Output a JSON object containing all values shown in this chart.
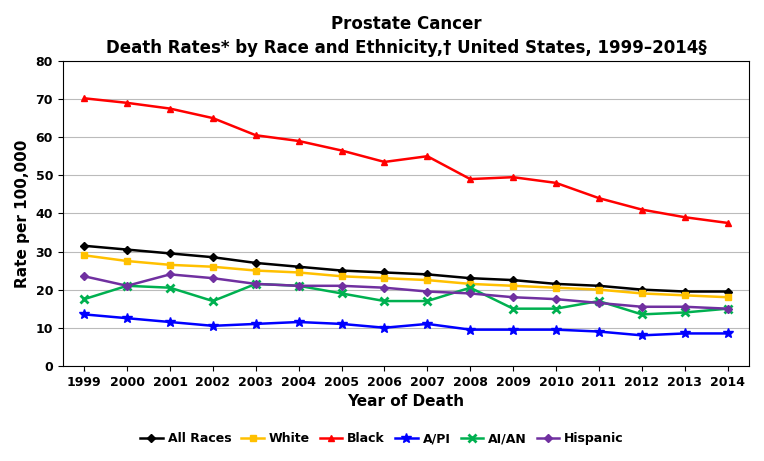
{
  "title_line1": "Prostate Cancer",
  "title_line2": "Death Rates* by Race and Ethnicity,† United States, 1999–2014§",
  "xlabel": "Year of Death",
  "ylabel": "Rate per 100,000",
  "years": [
    1999,
    2000,
    2001,
    2002,
    2003,
    2004,
    2005,
    2006,
    2007,
    2008,
    2009,
    2010,
    2011,
    2012,
    2013,
    2014
  ],
  "series": {
    "All Races": {
      "values": [
        31.5,
        30.5,
        29.5,
        28.5,
        27.0,
        26.0,
        25.0,
        24.5,
        24.0,
        23.0,
        22.5,
        21.5,
        21.0,
        20.0,
        19.5,
        19.5
      ],
      "color": "#000000",
      "marker": "D",
      "markersize": 4
    },
    "White": {
      "values": [
        29.0,
        27.5,
        26.5,
        26.0,
        25.0,
        24.5,
        23.5,
        23.0,
        22.5,
        21.5,
        21.0,
        20.5,
        20.0,
        19.0,
        18.5,
        18.0
      ],
      "color": "#FFC000",
      "marker": "s",
      "markersize": 4
    },
    "Black": {
      "values": [
        70.2,
        69.0,
        67.5,
        65.0,
        60.5,
        59.0,
        56.5,
        53.5,
        55.0,
        49.0,
        49.5,
        48.0,
        44.0,
        41.0,
        39.0,
        37.5
      ],
      "color": "#FF0000",
      "marker": "^",
      "markersize": 5
    },
    "A/PI": {
      "values": [
        13.5,
        12.5,
        11.5,
        10.5,
        11.0,
        11.5,
        11.0,
        10.0,
        11.0,
        9.5,
        9.5,
        9.5,
        9.0,
        8.0,
        8.5,
        8.5
      ],
      "color": "#0000FF",
      "marker": "*",
      "markersize": 7
    },
    "AI/AN": {
      "values": [
        17.5,
        21.0,
        20.5,
        17.0,
        21.5,
        21.0,
        19.0,
        17.0,
        17.0,
        20.5,
        15.0,
        15.0,
        17.0,
        13.5,
        14.0,
        15.0
      ],
      "color": "#00B050",
      "marker": "x",
      "markersize": 6,
      "markeredgewidth": 2
    },
    "Hispanic": {
      "values": [
        23.5,
        21.0,
        24.0,
        23.0,
        21.5,
        21.0,
        21.0,
        20.5,
        19.5,
        19.0,
        18.0,
        17.5,
        16.5,
        15.5,
        15.5,
        15.0
      ],
      "color": "#7030A0",
      "marker": "D",
      "markersize": 4
    }
  },
  "ylim": [
    0,
    80
  ],
  "yticks": [
    0,
    10,
    20,
    30,
    40,
    50,
    60,
    70,
    80
  ],
  "background_color": "#FFFFFF",
  "legend_order": [
    "All Races",
    "White",
    "Black",
    "A/PI",
    "AI/AN",
    "Hispanic"
  ],
  "title_fontsize": 12,
  "axis_label_fontsize": 11,
  "tick_fontsize": 9,
  "legend_fontsize": 9
}
